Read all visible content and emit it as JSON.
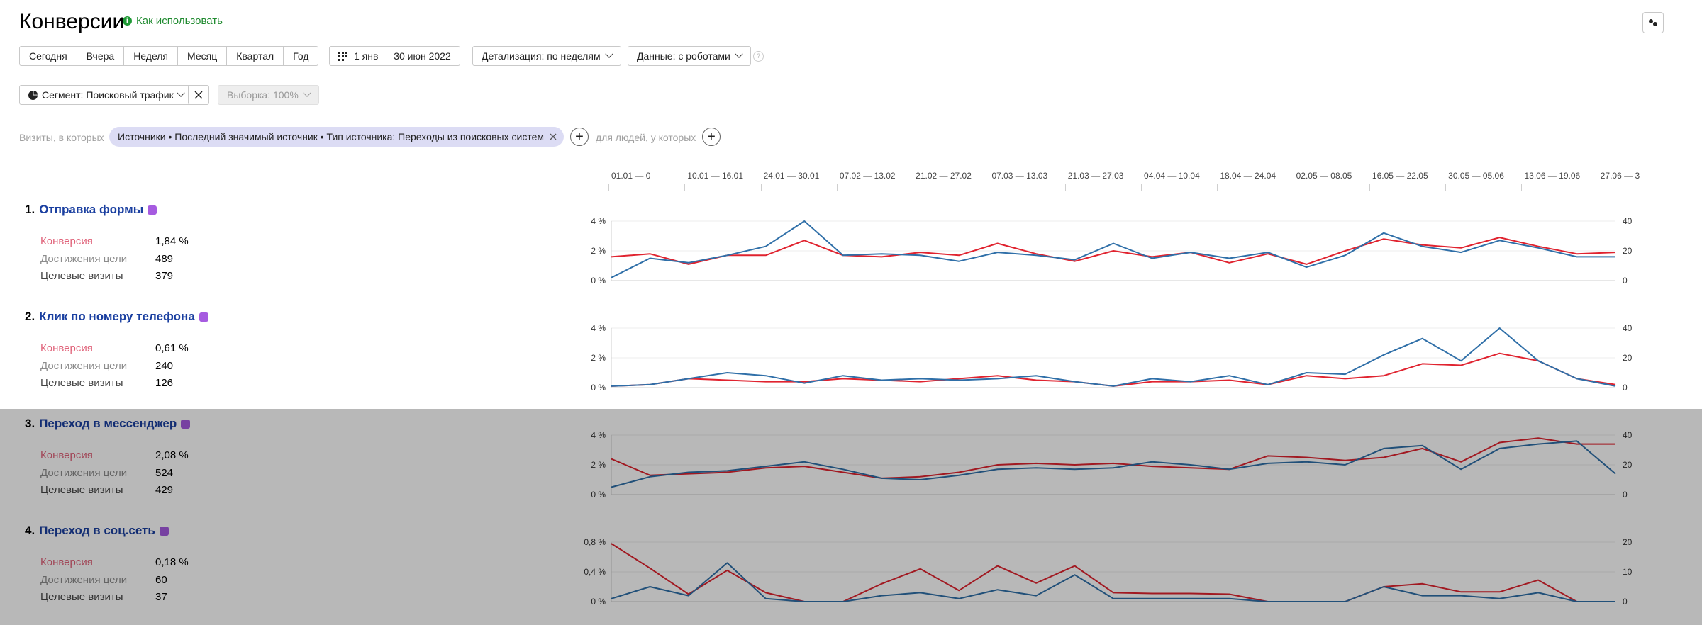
{
  "header": {
    "title": "Конверсии",
    "help_link": "Как использовать"
  },
  "toolbar": {
    "periods": [
      "Сегодня",
      "Вчера",
      "Неделя",
      "Месяц",
      "Квартал",
      "Год"
    ],
    "date_range": "1 янв — 30 июн 2022",
    "detail": "Детализация: по неделям",
    "data": "Данные: с роботами"
  },
  "segment": {
    "label": "Сегмент: Поисковый трафик",
    "sample": "Выборка: 100%"
  },
  "filter": {
    "visits_prefix": "Визиты, в которых",
    "chip": "Источники • Последний значимый источник • Тип источника: Переходы из поисковых систем",
    "people_prefix": "для людей, у которых"
  },
  "date_axis": [
    "01.01 — 0",
    "10.01 — 16.01",
    "24.01 — 30.01",
    "07.02 — 13.02",
    "21.02 — 27.02",
    "07.03 — 13.03",
    "21.03 — 27.03",
    "04.04 — 10.04",
    "18.04 — 24.04",
    "02.05 — 08.05",
    "16.05 — 22.05",
    "30.05 — 05.06",
    "13.06 — 19.06",
    "27.06 — 3"
  ],
  "metric_labels": {
    "conversion": "Конверсия",
    "achievements": "Достижения цели",
    "visits": "Целевые визиты"
  },
  "colors": {
    "conversion_line": "#e0232f",
    "visits_line": "#2f6fa8",
    "goal_title": "#1a3fa0",
    "help": "#1f8a2f"
  },
  "goals": [
    {
      "number": "1.",
      "name": "Отправка формы",
      "icon": "form-icon",
      "conversion": "1,84 %",
      "achievements": "489",
      "visits": "379"
    },
    {
      "number": "2.",
      "name": "Клик по номеру телефона",
      "icon": "phone-icon",
      "conversion": "0,61 %",
      "achievements": "240",
      "visits": "126"
    },
    {
      "number": "3.",
      "name": "Переход в мессенджер",
      "icon": "chat-icon",
      "conversion": "2,08 %",
      "achievements": "524",
      "visits": "429"
    },
    {
      "number": "4.",
      "name": "Переход в соц.сеть",
      "icon": "person-icon",
      "conversion": "0,18 %",
      "achievements": "60",
      "visits": "37"
    }
  ],
  "chart_data": [
    {
      "type": "line",
      "left_ticks": [
        "4 %",
        "2 %",
        "0 %"
      ],
      "right_ticks": [
        "40",
        "20",
        "0"
      ],
      "left_range": [
        0,
        4
      ],
      "right_range": [
        0,
        40
      ],
      "series": [
        {
          "values": [
            1.6,
            1.8,
            1.1,
            1.7,
            1.7,
            2.7,
            1.7,
            1.6,
            1.9,
            1.7,
            2.5,
            1.8,
            1.3,
            2.0,
            1.6,
            1.9,
            1.2,
            1.8,
            1.1,
            2.0,
            2.8,
            2.4,
            2.2,
            2.9,
            2.3,
            1.8,
            1.9
          ]
        },
        {
          "values": [
            2,
            15,
            12,
            17,
            23,
            40,
            17,
            18,
            17,
            13,
            19,
            17,
            14,
            25,
            15,
            19,
            15,
            19,
            9,
            17,
            32,
            23,
            19,
            27,
            22,
            16,
            16
          ]
        }
      ]
    },
    {
      "type": "line",
      "left_ticks": [
        "4 %",
        "2 %",
        "0 %"
      ],
      "right_ticks": [
        "40",
        "20",
        "0"
      ],
      "left_range": [
        0,
        4
      ],
      "right_range": [
        0,
        40
      ],
      "series": [
        {
          "values": [
            0.1,
            0.2,
            0.6,
            0.5,
            0.4,
            0.4,
            0.6,
            0.5,
            0.4,
            0.6,
            0.8,
            0.5,
            0.4,
            0.1,
            0.4,
            0.4,
            0.5,
            0.2,
            0.8,
            0.6,
            0.8,
            1.6,
            1.5,
            2.3,
            1.8,
            0.6,
            0.2
          ]
        },
        {
          "values": [
            1,
            2,
            6,
            10,
            8,
            3,
            8,
            5,
            6,
            5,
            6,
            8,
            4,
            1,
            6,
            4,
            8,
            2,
            10,
            9,
            22,
            33,
            18,
            40,
            18,
            6,
            1
          ]
        }
      ]
    },
    {
      "type": "line",
      "left_ticks": [
        "4 %",
        "2 %",
        "0 %"
      ],
      "right_ticks": [
        "40",
        "20",
        "0"
      ],
      "left_range": [
        0,
        4
      ],
      "right_range": [
        0,
        40
      ],
      "series": [
        {
          "values": [
            2.4,
            1.3,
            1.4,
            1.5,
            1.8,
            1.9,
            1.5,
            1.1,
            1.2,
            1.5,
            2.0,
            2.1,
            2.0,
            2.1,
            1.9,
            1.8,
            1.7,
            2.6,
            2.5,
            2.3,
            2.5,
            3.1,
            2.2,
            3.5,
            3.8,
            3.4,
            3.4
          ]
        },
        {
          "values": [
            5,
            12,
            15,
            16,
            19,
            22,
            17,
            11,
            10,
            13,
            17,
            18,
            17,
            18,
            22,
            20,
            17,
            21,
            22,
            20,
            31,
            33,
            17,
            31,
            34,
            36,
            14
          ]
        }
      ]
    },
    {
      "type": "line",
      "left_ticks": [
        "0,8 %",
        "0,4 %",
        "0 %"
      ],
      "right_ticks": [
        "20",
        "10",
        "0"
      ],
      "left_range": [
        0,
        0.8
      ],
      "right_range": [
        0,
        20
      ],
      "series": [
        {
          "values": [
            0.78,
            0.45,
            0.1,
            0.42,
            0.12,
            0.0,
            0.0,
            0.24,
            0.44,
            0.15,
            0.48,
            0.25,
            0.48,
            0.12,
            0.11,
            0.11,
            0.1,
            0.0,
            0.0,
            0.0,
            0.2,
            0.24,
            0.13,
            0.13,
            0.29,
            0.0,
            0.0
          ]
        },
        {
          "values": [
            1,
            5,
            2,
            13,
            1,
            0,
            0,
            2,
            3,
            1,
            4,
            2,
            9,
            1,
            1,
            1,
            1,
            0,
            0,
            0,
            5,
            2,
            2,
            1,
            3,
            0,
            0
          ]
        }
      ]
    }
  ]
}
